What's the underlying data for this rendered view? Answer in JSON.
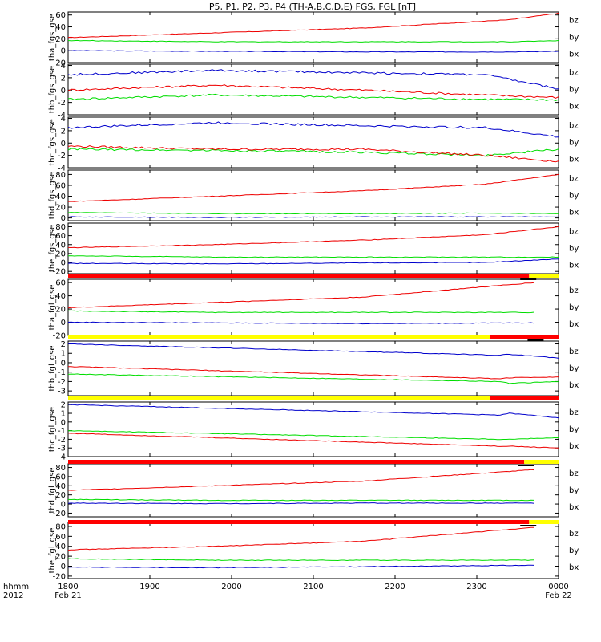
{
  "title": "P5, P1, P2, P3, P4 (TH-A,B,C,D,E) FGS, FGL [nT]",
  "time_axis": {
    "row_labels": [
      "hhmm",
      "2012"
    ],
    "ticks": [
      "1800",
      "1900",
      "2000",
      "2100",
      "2200",
      "2300",
      "0000"
    ],
    "start_date": "Feb 21",
    "end_date": "Feb 22"
  },
  "colors": {
    "bx": "#0000cc",
    "by": "#00dd00",
    "bz": "#ee0000",
    "bar_yellow": "#ffff00",
    "bar_red": "#ff0000"
  },
  "legend": [
    "bz",
    "by",
    "bx"
  ],
  "chart_data": [
    {
      "type": "line",
      "ylabel": "tha_fgs_gse",
      "ylim": [
        -20,
        65
      ],
      "yticks": [
        "60",
        "40",
        "20",
        "0",
        "-20"
      ],
      "x": [
        0,
        0.3,
        0.6,
        0.9,
        1.0
      ],
      "series": [
        {
          "name": "bz",
          "values": [
            22,
            30,
            38,
            52,
            63
          ]
        },
        {
          "name": "by",
          "values": [
            17,
            15,
            15,
            15,
            17
          ]
        },
        {
          "name": "bx",
          "values": [
            0,
            -1,
            -2,
            -2,
            -1
          ]
        }
      ]
    },
    {
      "type": "line",
      "ylabel": "thb_fgs_gse",
      "ylim": [
        -4,
        4.2
      ],
      "yticks": [
        "4",
        "2",
        "0",
        "-2",
        "-4"
      ],
      "x": [
        0,
        0.3,
        0.6,
        0.85,
        1.0
      ],
      "series": [
        {
          "name": "bz",
          "values": [
            0,
            0.8,
            0,
            -0.8,
            -1.2
          ]
        },
        {
          "name": "by",
          "values": [
            -1.5,
            -0.8,
            -1.2,
            -1.5,
            -1.6
          ]
        },
        {
          "name": "bx",
          "values": [
            2.5,
            3.2,
            2.8,
            2.5,
            0.2
          ]
        }
      ]
    },
    {
      "type": "line",
      "ylabel": "thc_fgs_gse",
      "ylim": [
        -4,
        4.2
      ],
      "yticks": [
        "4",
        "2",
        "0",
        "-2",
        "-4"
      ],
      "x": [
        0,
        0.3,
        0.6,
        0.85,
        1.0
      ],
      "series": [
        {
          "name": "bz",
          "values": [
            -0.5,
            -1,
            -1,
            -2,
            -3
          ]
        },
        {
          "name": "by",
          "values": [
            -1,
            -1.2,
            -1.5,
            -2,
            -1
          ]
        },
        {
          "name": "bx",
          "values": [
            2.5,
            3.3,
            2.8,
            2.5,
            1
          ]
        }
      ]
    },
    {
      "type": "line",
      "ylabel": "thd_fgs_gse",
      "ylim": [
        -5,
        88
      ],
      "yticks": [
        "80",
        "60",
        "40",
        "20",
        "0"
      ],
      "x": [
        0,
        0.3,
        0.6,
        0.85,
        1.0
      ],
      "series": [
        {
          "name": "bz",
          "values": [
            30,
            40,
            50,
            62,
            80
          ]
        },
        {
          "name": "by",
          "values": [
            10,
            8,
            8,
            9,
            8
          ]
        },
        {
          "name": "bx",
          "values": [
            2,
            1,
            2,
            2,
            2
          ]
        }
      ]
    },
    {
      "type": "line",
      "ylabel": "the_fgs_gse",
      "ylim": [
        -25,
        88
      ],
      "yticks": [
        "80",
        "60",
        "40",
        "20",
        "0",
        "-20"
      ],
      "x": [
        0,
        0.3,
        0.6,
        0.85,
        1.0
      ],
      "series": [
        {
          "name": "bz",
          "values": [
            33,
            40,
            50,
            62,
            80
          ]
        },
        {
          "name": "by",
          "values": [
            15,
            12,
            12,
            12,
            12
          ]
        },
        {
          "name": "bx",
          "values": [
            -2,
            -3,
            -1,
            0,
            8
          ]
        }
      ]
    },
    {
      "type": "line",
      "ylabel": "tha_fgl_gse",
      "ylim": [
        -20,
        65
      ],
      "yticks": [
        "60",
        "40",
        "20",
        "0",
        "-20"
      ],
      "x": [
        0,
        0.3,
        0.6,
        0.95
      ],
      "series": [
        {
          "name": "bz",
          "values": [
            22,
            30,
            38,
            60
          ]
        },
        {
          "name": "by",
          "values": [
            17,
            15,
            15,
            15
          ]
        },
        {
          "name": "bx",
          "values": [
            0,
            -1,
            -2,
            -1
          ]
        }
      ]
    },
    {
      "type": "line",
      "ylabel": "thb_fgl_gse",
      "ylim": [
        -3.5,
        2.3
      ],
      "yticks": [
        "2",
        "1",
        "0",
        "-1",
        "-2",
        "-3"
      ],
      "x": [
        0,
        0.88,
        0.9,
        1.0
      ],
      "series": [
        {
          "name": "bz",
          "values": [
            -0.4,
            -1.7,
            -1.6,
            -1.5
          ]
        },
        {
          "name": "by",
          "values": [
            -1.2,
            -2,
            -2.2,
            -2
          ]
        },
        {
          "name": "bx",
          "values": [
            2,
            0.8,
            0.9,
            0.5
          ]
        }
      ]
    },
    {
      "type": "line",
      "ylabel": "thc_fgl_gse",
      "ylim": [
        -4,
        2.3
      ],
      "yticks": [
        "2",
        "1",
        "0",
        "-1",
        "-2",
        "-3",
        "-4"
      ],
      "x": [
        0,
        0.88,
        0.9,
        1.0
      ],
      "series": [
        {
          "name": "bz",
          "values": [
            -1.3,
            -2.8,
            -2.8,
            -3
          ]
        },
        {
          "name": "by",
          "values": [
            -1,
            -2,
            -2,
            -1.8
          ]
        },
        {
          "name": "bx",
          "values": [
            2,
            0.8,
            1,
            0.5
          ]
        }
      ]
    },
    {
      "type": "line",
      "ylabel": "thd_fgl_gse",
      "ylim": [
        -28,
        88
      ],
      "yticks": [
        "80",
        "60",
        "40",
        "20",
        "0",
        "-20"
      ],
      "x": [
        0,
        0.3,
        0.6,
        0.95
      ],
      "series": [
        {
          "name": "bz",
          "values": [
            30,
            40,
            50,
            75
          ]
        },
        {
          "name": "by",
          "values": [
            10,
            8,
            8,
            8
          ]
        },
        {
          "name": "bx",
          "values": [
            2,
            1,
            2,
            2
          ]
        }
      ]
    },
    {
      "type": "line",
      "ylabel": "the_fgl_gse",
      "ylim": [
        -25,
        88
      ],
      "yticks": [
        "80",
        "60",
        "40",
        "20",
        "0",
        "-20"
      ],
      "x": [
        0,
        0.3,
        0.6,
        0.95
      ],
      "series": [
        {
          "name": "bz",
          "values": [
            33,
            40,
            50,
            78
          ]
        },
        {
          "name": "by",
          "values": [
            15,
            12,
            12,
            12
          ]
        },
        {
          "name": "bx",
          "values": [
            -2,
            -3,
            -1,
            2
          ]
        }
      ]
    }
  ],
  "status_bars": [
    {
      "segments": [
        {
          "from": 0,
          "to": 0.94,
          "color": "red"
        },
        {
          "from": 0.94,
          "to": 1.0,
          "color": "yellow"
        }
      ],
      "marks": [
        0.935
      ]
    },
    {
      "segments": [
        {
          "from": 0,
          "to": 0.86,
          "color": "yellow"
        },
        {
          "from": 0.86,
          "to": 1.0,
          "color": "red"
        }
      ],
      "marks": [
        0.95
      ]
    },
    {
      "segments": [
        {
          "from": 0,
          "to": 0.86,
          "color": "yellow"
        },
        {
          "from": 0.86,
          "to": 1.0,
          "color": "red"
        }
      ],
      "marks": []
    },
    {
      "segments": [
        {
          "from": 0,
          "to": 0.93,
          "color": "red"
        },
        {
          "from": 0.93,
          "to": 1.0,
          "color": "yellow"
        }
      ],
      "marks": [
        0.93
      ]
    },
    {
      "segments": [
        {
          "from": 0,
          "to": 0.94,
          "color": "red"
        },
        {
          "from": 0.94,
          "to": 1.0,
          "color": "yellow"
        }
      ],
      "marks": [
        0.935
      ]
    }
  ]
}
